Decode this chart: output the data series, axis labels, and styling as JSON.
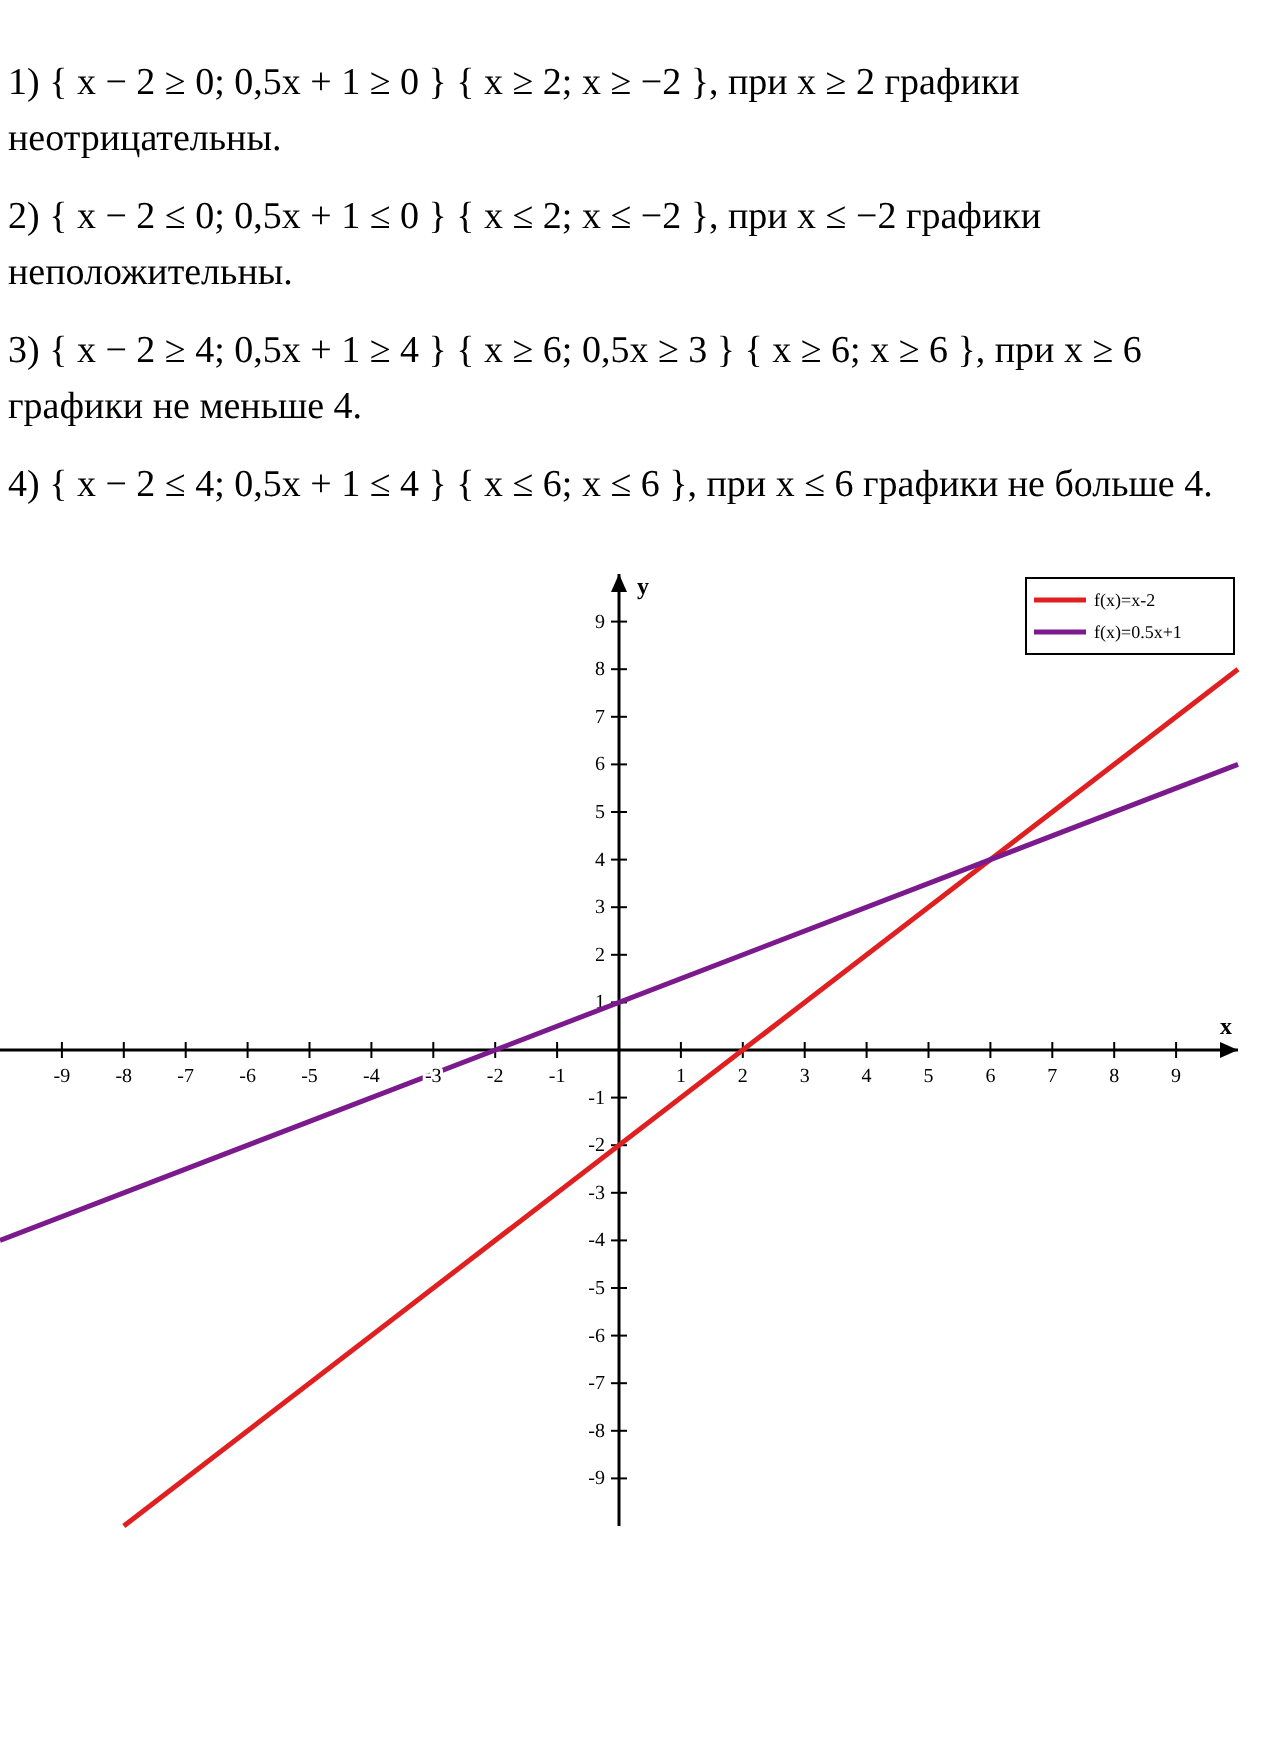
{
  "chart_data": {
    "type": "line",
    "annotations": [
      "1) { x − 2 ≥ 0; 0,5x + 1 ≥ 0 }   { x ≥ 2; x ≥ −2 },   при x ≥ 2 графики неотрицательны.",
      "2) { x − 2 ≤ 0; 0,5x + 1 ≤ 0 }   { x ≤ 2; x ≤ −2 },   при x ≤ −2 графики неположительны.",
      "3) { x − 2 ≥ 4; 0,5x + 1 ≥ 4 }   { x ≥ 6; 0,5x ≥ 3 }   { x ≥ 6; x ≥ 6 },   при x ≥ 6 графики не меньше 4.",
      "4) { x − 2 ≤ 4; 0,5x + 1 ≤ 4 }   { x ≤ 6; x ≤ 6 },   при x ≤ 6 графики не больше 4."
    ],
    "xlabel": "x",
    "ylabel": "y",
    "xlim": [
      -10,
      10
    ],
    "ylim": [
      -10,
      10
    ],
    "xticks": [
      -9,
      -8,
      -7,
      -6,
      -5,
      -4,
      -3,
      -2,
      -1,
      1,
      2,
      3,
      4,
      5,
      6,
      7,
      8,
      9
    ],
    "yticks": [
      -9,
      -8,
      -7,
      -6,
      -5,
      -4,
      -3,
      -2,
      -1,
      1,
      2,
      3,
      4,
      5,
      6,
      7,
      8,
      9
    ],
    "legend": "top right",
    "line_style": "solid",
    "series": [
      {
        "name": "f(x)=x-2",
        "color": "#e02020",
        "x": [
          -8,
          10
        ],
        "values": [
          -10,
          8
        ]
      },
      {
        "name": "f(x)=0.5x+1",
        "color": "#7b1a8c",
        "x": [
          -10,
          10
        ],
        "values": [
          -4,
          6
        ]
      }
    ]
  }
}
